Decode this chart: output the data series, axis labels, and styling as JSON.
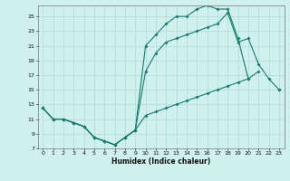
{
  "xlabel": "Humidex (Indice chaleur)",
  "background_color": "#cff0ec",
  "grid_color": "#aaddd8",
  "line_color": "#1a7a6e",
  "xlim": [
    -0.5,
    23.5
  ],
  "ylim": [
    7,
    26.5
  ],
  "yticks": [
    7,
    9,
    11,
    13,
    15,
    17,
    19,
    21,
    23,
    25
  ],
  "xticks": [
    0,
    1,
    2,
    3,
    4,
    5,
    6,
    7,
    8,
    9,
    10,
    11,
    12,
    13,
    14,
    15,
    16,
    17,
    18,
    19,
    20,
    21,
    22,
    23
  ],
  "line1_x": [
    0,
    1,
    2,
    3,
    4,
    5,
    6,
    7,
    8,
    9,
    10,
    11,
    12,
    13,
    14,
    15,
    16,
    17,
    18,
    19,
    20
  ],
  "line1_y": [
    12.5,
    11,
    11,
    10.5,
    10,
    8.5,
    8,
    7.5,
    8.5,
    9.5,
    21,
    22.5,
    24,
    25,
    25,
    26,
    26.5,
    26,
    26,
    22,
    16.5
  ],
  "line2_x": [
    0,
    1,
    2,
    3,
    4,
    5,
    6,
    7,
    8,
    9,
    10,
    11,
    12,
    13,
    14,
    15,
    16,
    17,
    18,
    19,
    20,
    21,
    22,
    23
  ],
  "line2_y": [
    12.5,
    11,
    11,
    10.5,
    10,
    8.5,
    8,
    7.5,
    8.5,
    9.5,
    17.5,
    20,
    21.5,
    22,
    22.5,
    23,
    23.5,
    24,
    25.5,
    21.5,
    22,
    18.5,
    16.5,
    15
  ],
  "line3_x": [
    0,
    1,
    2,
    3,
    4,
    5,
    6,
    7,
    8,
    9,
    10,
    11,
    12,
    13,
    14,
    15,
    16,
    17,
    18,
    19,
    20,
    21,
    22,
    23
  ],
  "line3_y": [
    12.5,
    11,
    11,
    10.5,
    10,
    8.5,
    8,
    7.5,
    8.5,
    9.5,
    11.5,
    12,
    12.5,
    13,
    13.5,
    14,
    14.5,
    15,
    15.5,
    16,
    16.5,
    17.5,
    null,
    15
  ]
}
